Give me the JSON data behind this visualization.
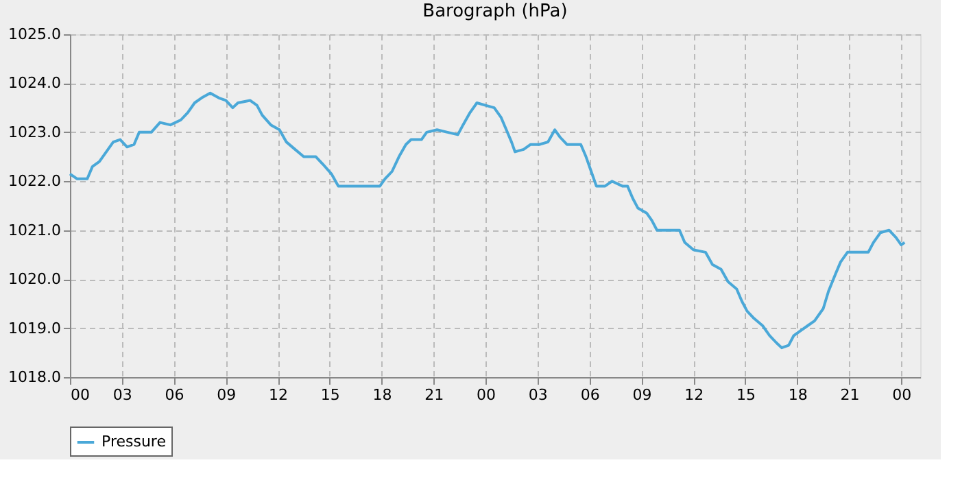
{
  "chart_data": {
    "type": "line",
    "title": "Barograph (hPa)",
    "x": [
      0,
      0.4,
      1.0,
      1.3,
      1.7,
      2.1,
      2.5,
      2.9,
      3.3,
      3.7,
      4.0,
      4.7,
      5.2,
      5.8,
      6.4,
      6.8,
      7.2,
      7.6,
      8.1,
      8.6,
      9.0,
      9.4,
      9.7,
      10.4,
      10.8,
      11.1,
      11.6,
      12.1,
      12.5,
      13.0,
      13.5,
      14.2,
      14.6,
      15.1,
      15.5,
      16.1,
      17.1,
      17.9,
      18.2,
      18.6,
      19.0,
      19.4,
      19.7,
      20.3,
      20.6,
      21.2,
      21.8,
      22.4,
      22.7,
      23.1,
      23.5,
      24.0,
      24.5,
      24.9,
      25.2,
      25.5,
      25.7,
      26.2,
      26.6,
      27.1,
      27.6,
      28.0,
      28.3,
      28.7,
      29.5,
      29.8,
      30.1,
      30.4,
      30.9,
      31.3,
      31.9,
      32.2,
      32.5,
      32.8,
      33.3,
      33.6,
      33.9,
      34.5,
      35.2,
      35.5,
      36.0,
      36.7,
      37.1,
      37.6,
      38.0,
      38.5,
      38.8,
      39.1,
      39.5,
      40.0,
      40.4,
      40.8,
      41.1,
      41.5,
      41.8,
      42.2,
      42.6,
      43.0,
      43.5,
      43.8,
      44.2,
      44.5,
      44.9,
      45.6,
      46.1,
      46.4,
      46.8,
      47.3,
      47.7,
      48.0,
      48.2
    ],
    "series": [
      {
        "name": "Pressure",
        "color": "#4aa8d8",
        "values": [
          1022.15,
          1022.05,
          1022.05,
          1022.3,
          1022.4,
          1022.6,
          1022.8,
          1022.85,
          1022.7,
          1022.75,
          1023.0,
          1023.0,
          1023.2,
          1023.15,
          1023.25,
          1023.4,
          1023.6,
          1023.7,
          1023.8,
          1023.7,
          1023.65,
          1023.5,
          1023.6,
          1023.65,
          1023.55,
          1023.35,
          1023.15,
          1023.05,
          1022.8,
          1022.65,
          1022.5,
          1022.5,
          1022.35,
          1022.15,
          1021.9,
          1021.9,
          1021.9,
          1021.9,
          1022.05,
          1022.2,
          1022.5,
          1022.75,
          1022.85,
          1022.85,
          1023.0,
          1023.05,
          1023.0,
          1022.95,
          1023.15,
          1023.4,
          1023.6,
          1023.55,
          1023.5,
          1023.3,
          1023.05,
          1022.8,
          1022.6,
          1022.65,
          1022.75,
          1022.75,
          1022.8,
          1023.05,
          1022.9,
          1022.75,
          1022.75,
          1022.5,
          1022.2,
          1021.9,
          1021.9,
          1022.0,
          1021.9,
          1021.9,
          1021.65,
          1021.45,
          1021.35,
          1021.2,
          1021.0,
          1021.0,
          1021.0,
          1020.75,
          1020.6,
          1020.55,
          1020.3,
          1020.2,
          1019.95,
          1019.8,
          1019.55,
          1019.35,
          1019.2,
          1019.05,
          1018.85,
          1018.7,
          1018.6,
          1018.65,
          1018.85,
          1018.95,
          1019.05,
          1019.15,
          1019.4,
          1019.75,
          1020.1,
          1020.35,
          1020.55,
          1020.55,
          1020.55,
          1020.75,
          1020.95,
          1021.0,
          1020.85,
          1020.7,
          1020.75
        ]
      }
    ],
    "xlim": [
      0,
      49.1
    ],
    "xticks": [
      {
        "value": 0,
        "label": "00"
      },
      {
        "value": 3,
        "label": "03"
      },
      {
        "value": 6,
        "label": "06"
      },
      {
        "value": 9,
        "label": "09"
      },
      {
        "value": 12,
        "label": "12"
      },
      {
        "value": 15,
        "label": "15"
      },
      {
        "value": 18,
        "label": "18"
      },
      {
        "value": 21,
        "label": "21"
      },
      {
        "value": 24,
        "label": "00"
      },
      {
        "value": 27,
        "label": "03"
      },
      {
        "value": 30,
        "label": "06"
      },
      {
        "value": 33,
        "label": "09"
      },
      {
        "value": 36,
        "label": "12"
      },
      {
        "value": 39,
        "label": "15"
      },
      {
        "value": 42,
        "label": "18"
      },
      {
        "value": 45,
        "label": "21"
      },
      {
        "value": 48,
        "label": "00"
      }
    ],
    "ylim": [
      1018,
      1025
    ],
    "yticks": [
      {
        "value": 1018,
        "label": "1018.0"
      },
      {
        "value": 1019,
        "label": "1019.0"
      },
      {
        "value": 1020,
        "label": "1020.0"
      },
      {
        "value": 1021,
        "label": "1021.0"
      },
      {
        "value": 1022,
        "label": "1022.0"
      },
      {
        "value": 1023,
        "label": "1023.0"
      },
      {
        "value": 1024,
        "label": "1024.0"
      },
      {
        "value": 1025,
        "label": "1025.0"
      }
    ],
    "grid": true,
    "legend": "bottom",
    "marker": "none",
    "line_style": "solid"
  }
}
